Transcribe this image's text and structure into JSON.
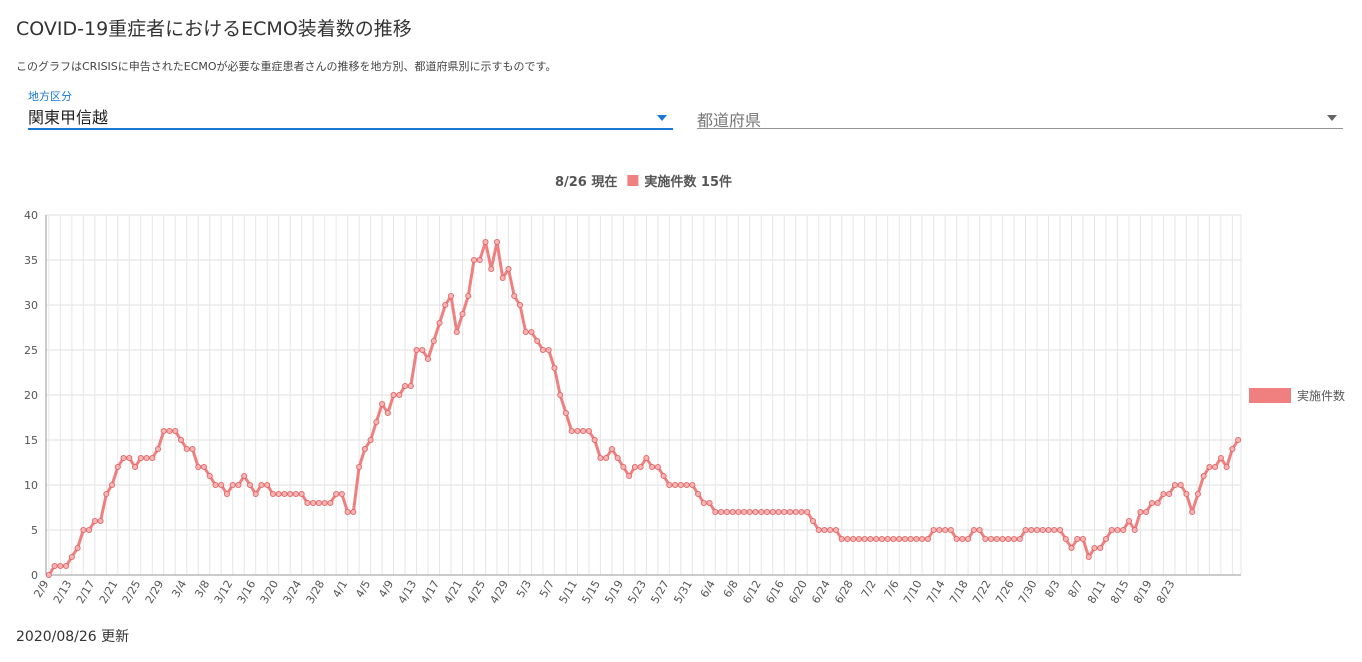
{
  "page": {
    "title": "COVID-19重症者におけるECMO装着数の推移",
    "description": "このグラフはCRISISに申告されたECMOが必要な重症患者さんの推移を地方別、都道府県別に示すものです。",
    "updated": "2020/08/26 更新"
  },
  "filters": {
    "region_label": "地方区分",
    "region_value": "関東甲信越",
    "prefecture_placeholder": "都道府県"
  },
  "colors": {
    "series": "#f08080",
    "accent": "#1976d2"
  },
  "chart_data": {
    "type": "line",
    "title": "8/26 現在",
    "summary": "実施件数 15件",
    "ylim": [
      0,
      40
    ],
    "yticks": [
      0,
      5,
      10,
      15,
      20,
      25,
      30,
      35,
      40
    ],
    "xtick_labels": [
      "2/9",
      "2/13",
      "2/17",
      "2/21",
      "2/25",
      "2/29",
      "3/4",
      "3/8",
      "3/12",
      "3/16",
      "3/20",
      "3/24",
      "3/28",
      "4/1",
      "4/5",
      "4/9",
      "4/13",
      "4/17",
      "4/21",
      "4/25",
      "4/29",
      "5/3",
      "5/7",
      "5/11",
      "5/15",
      "5/19",
      "5/23",
      "5/27",
      "5/31",
      "6/4",
      "6/8",
      "6/12",
      "6/16",
      "6/20",
      "6/24",
      "6/28",
      "7/2",
      "7/6",
      "7/10",
      "7/14",
      "7/18",
      "7/22",
      "7/26",
      "7/30",
      "8/3",
      "8/7",
      "8/11",
      "8/15",
      "8/19",
      "8/23"
    ],
    "grid": true,
    "legend": "right",
    "x_start": "2/9",
    "x_end": "8/26",
    "series": [
      {
        "name": "実施件数",
        "values": [
          0,
          1,
          1,
          1,
          2,
          3,
          5,
          5,
          6,
          6,
          9,
          10,
          12,
          13,
          13,
          12,
          13,
          13,
          13,
          14,
          16,
          16,
          16,
          15,
          14,
          14,
          12,
          12,
          11,
          10,
          10,
          9,
          10,
          10,
          11,
          10,
          9,
          10,
          10,
          9,
          9,
          9,
          9,
          9,
          9,
          8,
          8,
          8,
          8,
          8,
          9,
          9,
          7,
          7,
          12,
          14,
          15,
          17,
          19,
          18,
          20,
          20,
          21,
          21,
          25,
          25,
          24,
          26,
          28,
          30,
          31,
          27,
          29,
          31,
          35,
          35,
          37,
          34,
          37,
          33,
          34,
          31,
          30,
          27,
          27,
          26,
          25,
          25,
          23,
          20,
          18,
          16,
          16,
          16,
          16,
          15,
          13,
          13,
          14,
          13,
          12,
          11,
          12,
          12,
          13,
          12,
          12,
          11,
          10,
          10,
          10,
          10,
          10,
          9,
          8,
          8,
          7,
          7,
          7,
          7,
          7,
          7,
          7,
          7,
          7,
          7,
          7,
          7,
          7,
          7,
          7,
          7,
          7,
          6,
          5,
          5,
          5,
          5,
          4,
          4,
          4,
          4,
          4,
          4,
          4,
          4,
          4,
          4,
          4,
          4,
          4,
          4,
          4,
          4,
          5,
          5,
          5,
          5,
          4,
          4,
          4,
          5,
          5,
          4,
          4,
          4,
          4,
          4,
          4,
          4,
          5,
          5,
          5,
          5,
          5,
          5,
          5,
          4,
          3,
          4,
          4,
          2,
          3,
          3,
          4,
          5,
          5,
          5,
          6,
          5,
          7,
          7,
          8,
          8,
          9,
          9,
          10,
          10,
          9,
          7,
          9,
          11,
          12,
          12,
          13,
          12,
          14,
          15
        ]
      }
    ]
  }
}
